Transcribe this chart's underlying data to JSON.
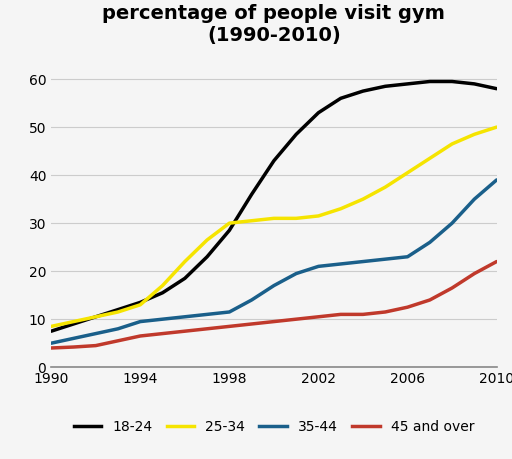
{
  "title": "percentage of people visit gym\n(1990-2010)",
  "xlim": [
    1990,
    2010
  ],
  "ylim": [
    0,
    65
  ],
  "yticks": [
    0,
    10,
    20,
    30,
    40,
    50,
    60
  ],
  "xticks": [
    1990,
    1994,
    1998,
    2002,
    2006,
    2010
  ],
  "background_color": "#f5f5f5",
  "plot_bg_color": "#f5f5f5",
  "series": [
    {
      "label": "18-24",
      "color": "#000000",
      "linewidth": 2.5,
      "x": [
        1990,
        1991,
        1992,
        1993,
        1994,
        1995,
        1996,
        1997,
        1998,
        1999,
        2000,
        2001,
        2002,
        2003,
        2004,
        2005,
        2006,
        2007,
        2008,
        2009,
        2010
      ],
      "y": [
        7.5,
        9.0,
        10.5,
        12.0,
        13.5,
        15.5,
        18.5,
        23.0,
        28.5,
        36.0,
        43.0,
        48.5,
        53.0,
        56.0,
        57.5,
        58.5,
        59.0,
        59.5,
        59.5,
        59.0,
        58.0
      ]
    },
    {
      "label": "25-34",
      "color": "#f5e400",
      "linewidth": 2.5,
      "x": [
        1990,
        1991,
        1992,
        1993,
        1994,
        1995,
        1996,
        1997,
        1998,
        1999,
        2000,
        2001,
        2002,
        2003,
        2004,
        2005,
        2006,
        2007,
        2008,
        2009,
        2010
      ],
      "y": [
        8.5,
        9.5,
        10.5,
        11.5,
        13.0,
        17.0,
        22.0,
        26.5,
        30.0,
        30.5,
        31.0,
        31.0,
        31.5,
        33.0,
        35.0,
        37.5,
        40.5,
        43.5,
        46.5,
        48.5,
        50.0
      ]
    },
    {
      "label": "35-44",
      "color": "#1a5f8a",
      "linewidth": 2.5,
      "x": [
        1990,
        1991,
        1992,
        1993,
        1994,
        1995,
        1996,
        1997,
        1998,
        1999,
        2000,
        2001,
        2002,
        2003,
        2004,
        2005,
        2006,
        2007,
        2008,
        2009,
        2010
      ],
      "y": [
        5.0,
        6.0,
        7.0,
        8.0,
        9.5,
        10.0,
        10.5,
        11.0,
        11.5,
        14.0,
        17.0,
        19.5,
        21.0,
        21.5,
        22.0,
        22.5,
        23.0,
        26.0,
        30.0,
        35.0,
        39.0
      ]
    },
    {
      "label": "45 and over",
      "color": "#c0392b",
      "linewidth": 2.5,
      "x": [
        1990,
        1991,
        1992,
        1993,
        1994,
        1995,
        1996,
        1997,
        1998,
        1999,
        2000,
        2001,
        2002,
        2003,
        2004,
        2005,
        2006,
        2007,
        2008,
        2009,
        2010
      ],
      "y": [
        4.0,
        4.2,
        4.5,
        5.5,
        6.5,
        7.0,
        7.5,
        8.0,
        8.5,
        9.0,
        9.5,
        10.0,
        10.5,
        11.0,
        11.0,
        11.5,
        12.5,
        14.0,
        16.5,
        19.5,
        22.0
      ]
    }
  ],
  "legend_labels": [
    "18-24",
    "25-34",
    "35-44",
    "45 and over"
  ],
  "legend_colors": [
    "#000000",
    "#f5e400",
    "#1a5f8a",
    "#c0392b"
  ],
  "title_fontsize": 14,
  "title_fontweight": "bold",
  "tick_fontsize": 10,
  "legend_fontsize": 10,
  "grid_color": "#cccccc",
  "grid_linewidth": 0.8
}
